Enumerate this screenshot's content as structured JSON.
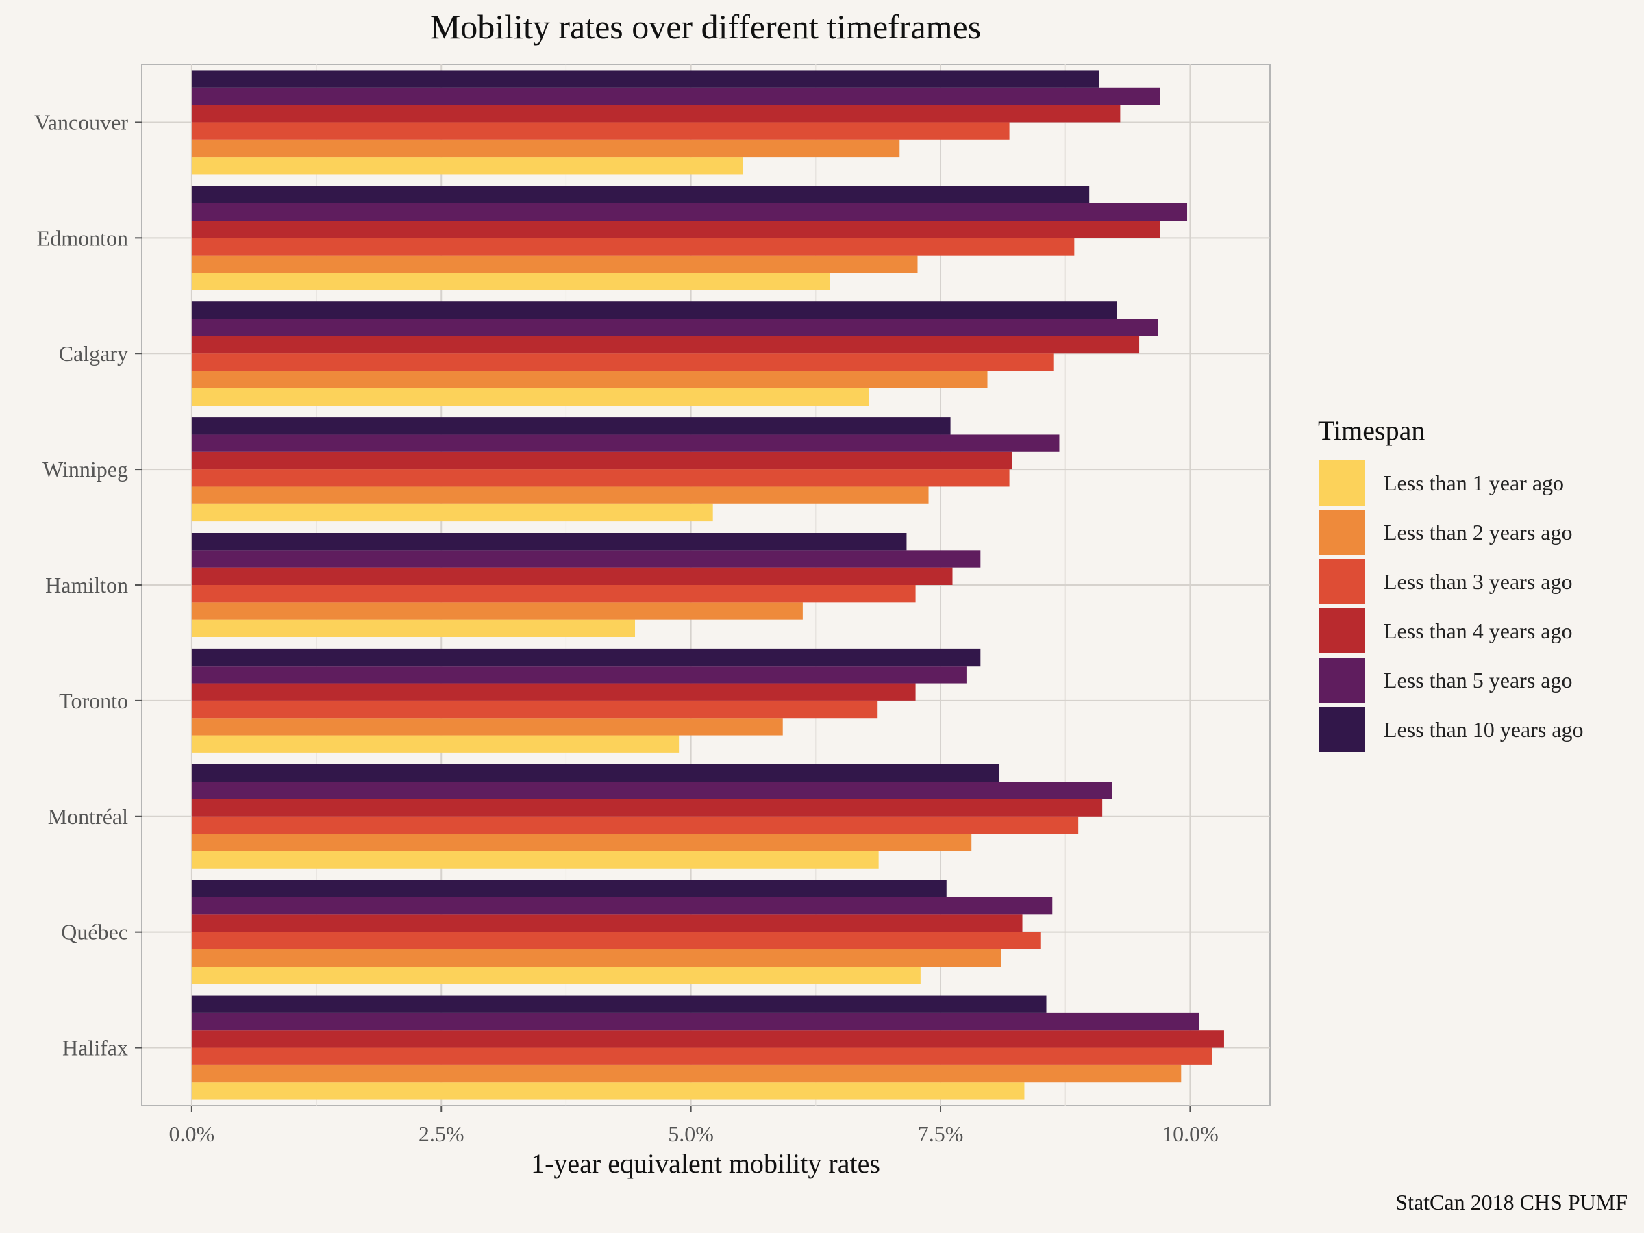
{
  "chart_data": {
    "type": "bar",
    "orientation": "horizontal",
    "title": "Mobility rates over different timeframes",
    "xlabel": "1-year equivalent mobility rates",
    "ylabel": "",
    "caption": "StatCan 2018 CHS PUMF",
    "xlim": [
      -0.005,
      0.108
    ],
    "x_ticks": [
      0.0,
      0.025,
      0.05,
      0.075,
      0.1
    ],
    "x_tick_labels": [
      "0.0%",
      "2.5%",
      "5.0%",
      "7.5%",
      "10.0%"
    ],
    "grid": true,
    "legend": {
      "title": "Timespan",
      "position": "right"
    },
    "categories": [
      "Vancouver",
      "Edmonton",
      "Calgary",
      "Winnipeg",
      "Hamilton",
      "Toronto",
      "Montréal",
      "Québec",
      "Halifax"
    ],
    "series": [
      {
        "name": "Less than 1 year ago",
        "color": "#fcd25a",
        "values": [
          0.0552,
          0.0639,
          0.0678,
          0.0522,
          0.0444,
          0.0488,
          0.0688,
          0.073,
          0.0834
        ]
      },
      {
        "name": "Less than 2 years ago",
        "color": "#ee8a3b",
        "values": [
          0.0709,
          0.0727,
          0.0797,
          0.0738,
          0.0612,
          0.0592,
          0.0781,
          0.0811,
          0.0991
        ]
      },
      {
        "name": "Less than 3 years ago",
        "color": "#de4d35",
        "values": [
          0.0819,
          0.0884,
          0.0863,
          0.0819,
          0.0725,
          0.0687,
          0.0888,
          0.085,
          0.1022
        ]
      },
      {
        "name": "Less than 4 years ago",
        "color": "#b92a2e",
        "values": [
          0.093,
          0.097,
          0.0949,
          0.0822,
          0.0762,
          0.0725,
          0.0912,
          0.0832,
          0.1034
        ]
      },
      {
        "name": "Less than 5 years ago",
        "color": "#5f1d5e",
        "values": [
          0.097,
          0.0997,
          0.0968,
          0.0869,
          0.079,
          0.0776,
          0.0922,
          0.0862,
          0.1009
        ]
      },
      {
        "name": "Less than 10 years ago",
        "color": "#32174a",
        "values": [
          0.0909,
          0.0899,
          0.0927,
          0.076,
          0.0716,
          0.079,
          0.0809,
          0.0756,
          0.0856
        ]
      }
    ]
  }
}
